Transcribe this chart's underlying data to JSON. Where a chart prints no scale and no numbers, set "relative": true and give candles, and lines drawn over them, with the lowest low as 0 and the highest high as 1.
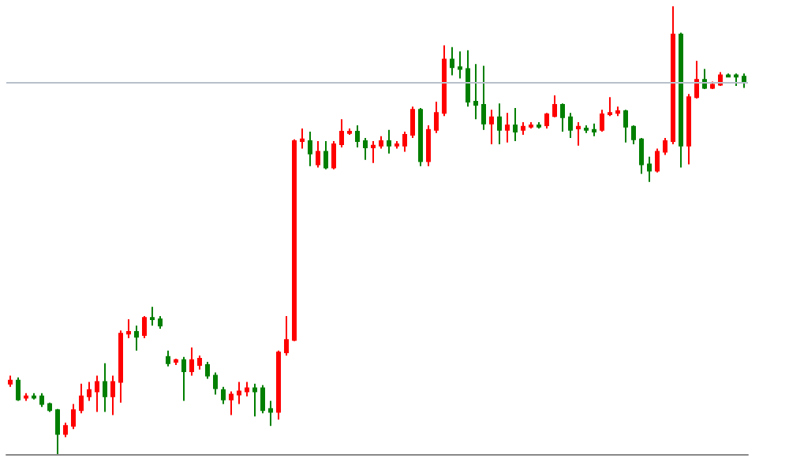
{
  "chart_data": {
    "type": "candlestick",
    "relative": true,
    "categories": [
      null,
      null,
      null,
      null,
      null,
      null,
      null,
      null,
      null,
      null,
      null,
      null,
      null,
      null,
      null,
      null,
      null,
      null,
      null,
      null,
      null,
      null,
      null,
      null,
      null,
      null,
      null,
      null,
      null,
      null,
      null,
      null,
      null,
      null,
      null,
      null,
      null,
      null,
      null,
      null,
      null,
      null,
      null,
      null,
      null,
      null,
      null,
      null,
      null,
      null,
      null,
      null,
      null,
      null,
      null,
      null,
      null,
      null,
      null,
      null,
      null,
      null,
      null,
      null,
      null,
      null,
      null,
      null,
      null,
      null,
      null,
      null,
      null,
      null,
      null,
      null,
      null,
      null,
      null,
      null,
      null,
      null,
      null,
      null,
      null,
      null,
      null,
      null,
      null,
      null,
      null,
      null,
      null,
      null
    ],
    "ohlc": [
      [
        0.157,
        0.175,
        0.15,
        0.164
      ],
      [
        0.164,
        0.171,
        0.119,
        0.122
      ],
      [
        0.126,
        0.136,
        0.119,
        0.129
      ],
      [
        0.129,
        0.136,
        0.122,
        0.126
      ],
      [
        0.129,
        0.136,
        0.105,
        0.112
      ],
      [
        0.112,
        0.115,
        0.094,
        0.098
      ],
      [
        0.098,
        0.101,
        0,
        0.045
      ],
      [
        0.045,
        0.07,
        0.038,
        0.063
      ],
      [
        0.063,
        0.112,
        0.056,
        0.098
      ],
      [
        0.098,
        0.157,
        0.091,
        0.129
      ],
      [
        0.129,
        0.161,
        0.119,
        0.143
      ],
      [
        0.14,
        0.175,
        0.094,
        0.161
      ],
      [
        0.161,
        0.203,
        0.094,
        0.129
      ],
      [
        0.129,
        0.175,
        0.087,
        0.161
      ],
      [
        0.161,
        0.276,
        0.115,
        0.269
      ],
      [
        0.269,
        0.301,
        0.259,
        0.273
      ],
      [
        0.273,
        0.287,
        0.231,
        0.262
      ],
      [
        0.266,
        0.308,
        0.259,
        0.304
      ],
      [
        0.304,
        0.329,
        0.287,
        0.301
      ],
      [
        0.301,
        0.308,
        0.28,
        0.287
      ],
      [
        0.217,
        0.231,
        0.196,
        0.203
      ],
      [
        0.206,
        0.213,
        0.199,
        0.21
      ],
      [
        0.21,
        0.217,
        0.119,
        0.185
      ],
      [
        0.185,
        0.238,
        0.175,
        0.21
      ],
      [
        0.199,
        0.22,
        0.189,
        0.213
      ],
      [
        0.199,
        0.206,
        0.168,
        0.175
      ],
      [
        0.175,
        0.182,
        0.133,
        0.147
      ],
      [
        0.143,
        0.15,
        0.112,
        0.122
      ],
      [
        0.122,
        0.14,
        0.087,
        0.133
      ],
      [
        0.133,
        0.161,
        0.112,
        0.14
      ],
      [
        0.14,
        0.161,
        0.129,
        0.147
      ],
      [
        0.147,
        0.157,
        0.084,
        0.14
      ],
      [
        0.147,
        0.154,
        0.091,
        0.098
      ],
      [
        0.101,
        0.119,
        0.063,
        0.094
      ],
      [
        0.094,
        0.231,
        0.077,
        0.227
      ],
      [
        0.227,
        0.308,
        0.22,
        0.255
      ],
      [
        0.255,
        0.703,
        0.252,
        0.699
      ],
      [
        0.699,
        0.727,
        0.682,
        0.703
      ],
      [
        0.699,
        0.72,
        0.643,
        0.671
      ],
      [
        0.647,
        0.699,
        0.64,
        0.675
      ],
      [
        0.675,
        0.699,
        0.636,
        0.64
      ],
      [
        0.64,
        0.699,
        0.636,
        0.692
      ],
      [
        0.692,
        0.748,
        0.685,
        0.72
      ],
      [
        0.717,
        0.727,
        0.713,
        0.72
      ],
      [
        0.72,
        0.734,
        0.685,
        0.699
      ],
      [
        0.699,
        0.706,
        0.657,
        0.685
      ],
      [
        0.685,
        0.699,
        0.65,
        0.689
      ],
      [
        0.689,
        0.71,
        0.682,
        0.699
      ],
      [
        0.699,
        0.724,
        0.671,
        0.689
      ],
      [
        0.689,
        0.699,
        0.682,
        0.692
      ],
      [
        0.689,
        0.72,
        0.675,
        0.713
      ],
      [
        0.713,
        0.776,
        0.706,
        0.769
      ],
      [
        0.769,
        0.773,
        0.643,
        0.654
      ],
      [
        0.654,
        0.734,
        0.643,
        0.724
      ],
      [
        0.724,
        0.787,
        0.717,
        0.762
      ],
      [
        0.762,
        0.913,
        0.755,
        0.881
      ],
      [
        0.881,
        0.909,
        0.846,
        0.864
      ],
      [
        0.864,
        0.899,
        0.839,
        0.86
      ],
      [
        0.86,
        0.902,
        0.776,
        0.787
      ],
      [
        0.787,
        0.871,
        0.748,
        0.78
      ],
      [
        0.78,
        0.867,
        0.724,
        0.738
      ],
      [
        0.738,
        0.769,
        0.692,
        0.752
      ],
      [
        0.752,
        0.783,
        0.692,
        0.724
      ],
      [
        0.724,
        0.762,
        0.696,
        0.734
      ],
      [
        0.734,
        0.773,
        0.699,
        0.72
      ],
      [
        0.724,
        0.741,
        0.713,
        0.731
      ],
      [
        0.731,
        0.741,
        0.727,
        0.734
      ],
      [
        0.734,
        0.741,
        0.727,
        0.731
      ],
      [
        0.734,
        0.762,
        0.727,
        0.759
      ],
      [
        0.755,
        0.801,
        0.752,
        0.78
      ],
      [
        0.78,
        0.783,
        0.72,
        0.752
      ],
      [
        0.752,
        0.762,
        0.706,
        0.724
      ],
      [
        0.727,
        0.741,
        0.689,
        0.731
      ],
      [
        0.727,
        0.734,
        0.717,
        0.724
      ],
      [
        0.724,
        0.738,
        0.71,
        0.72
      ],
      [
        0.724,
        0.769,
        0.72,
        0.759
      ],
      [
        0.759,
        0.797,
        0.755,
        0.762
      ],
      [
        0.762,
        0.776,
        0.755,
        0.766
      ],
      [
        0.766,
        0.769,
        0.696,
        0.731
      ],
      [
        0.731,
        0.734,
        0.692,
        0.703
      ],
      [
        0.703,
        0.706,
        0.626,
        0.647
      ],
      [
        0.647,
        0.664,
        0.608,
        0.633
      ],
      [
        0.633,
        0.682,
        0.629,
        0.675
      ],
      [
        0.675,
        0.706,
        0.668,
        0.699
      ],
      [
        0.699,
        1,
        0.692,
        0.937
      ],
      [
        0.937,
        0.941,
        0.64,
        0.689
      ],
      [
        0.689,
        0.804,
        0.647,
        0.797
      ],
      [
        0.797,
        0.878,
        0.794,
        0.836
      ],
      [
        0.836,
        0.86,
        0.815,
        0.818
      ],
      [
        0.818,
        0.832,
        0.815,
        0.825
      ],
      [
        0.825,
        0.853,
        0.822,
        0.846
      ],
      [
        0.846,
        0.85,
        0.843,
        0.843
      ],
      [
        0.846,
        0.85,
        0.822,
        0.843
      ],
      [
        0.843,
        0.85,
        0.818,
        0.832
      ]
    ],
    "colors": [
      "#ff0000",
      "#007f00",
      "#ff0000",
      "#007f00",
      "#007f00",
      "#007f00",
      "#007f00",
      "#ff0000",
      "#ff0000",
      "#ff0000",
      "#ff0000",
      "#ff0000",
      "#007f00",
      "#ff0000",
      "#ff0000",
      "#ff0000",
      "#007f00",
      "#ff0000",
      "#007f00",
      "#007f00",
      "#007f00",
      "#ff0000",
      "#007f00",
      "#ff0000",
      "#ff0000",
      "#007f00",
      "#007f00",
      "#007f00",
      "#ff0000",
      "#ff0000",
      "#ff0000",
      "#007f00",
      "#007f00",
      "#007f00",
      "#ff0000",
      "#ff0000",
      "#ff0000",
      "#ff0000",
      "#007f00",
      "#ff0000",
      "#007f00",
      "#ff0000",
      "#ff0000",
      "#ff0000",
      "#007f00",
      "#007f00",
      "#ff0000",
      "#ff0000",
      "#007f00",
      "#ff0000",
      "#ff0000",
      "#ff0000",
      "#007f00",
      "#ff0000",
      "#ff0000",
      "#ff0000",
      "#007f00",
      "#007f00",
      "#007f00",
      "#007f00",
      "#007f00",
      "#ff0000",
      "#007f00",
      "#ff0000",
      "#007f00",
      "#ff0000",
      "#ff0000",
      "#007f00",
      "#ff0000",
      "#ff0000",
      "#007f00",
      "#007f00",
      "#ff0000",
      "#007f00",
      "#007f00",
      "#ff0000",
      "#ff0000",
      "#ff0000",
      "#007f00",
      "#007f00",
      "#007f00",
      "#007f00",
      "#ff0000",
      "#ff0000",
      "#ff0000",
      "#007f00",
      "#ff0000",
      "#ff0000",
      "#007f00",
      "#ff0000",
      "#ff0000",
      "#007f00",
      "#007f00",
      "#007f00"
    ],
    "ref_lines": [
      {
        "axis": "y",
        "value": 0.832,
        "color": "#b8c0cc"
      }
    ]
  }
}
